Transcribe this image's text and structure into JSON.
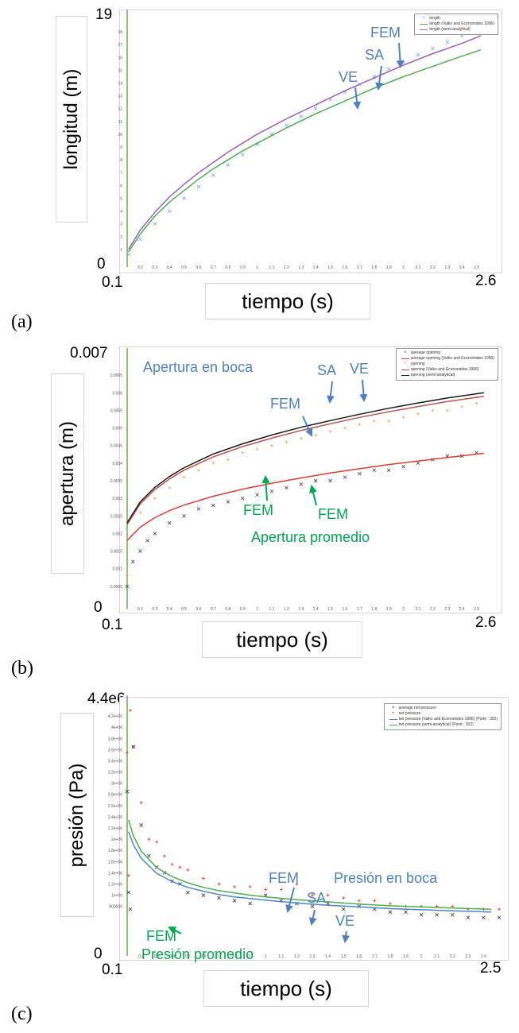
{
  "panels": [
    {
      "label": "(a)",
      "y_title": "longitud (m)",
      "x_title": "tiempo (s)",
      "y_min_label": "0",
      "y_max_label": "19",
      "x_min_label": "0.1",
      "x_max_label": "2.6",
      "legend": [
        "length",
        "length (Valko and Economides 1996)",
        "length (semi-analytical)"
      ],
      "annotations": [
        {
          "text": "FEM",
          "color": "#4f81bd"
        },
        {
          "text": "SA",
          "color": "#4f81bd"
        },
        {
          "text": "VE",
          "color": "#4f81bd"
        }
      ]
    },
    {
      "label": "(b)",
      "y_title": "apertura (m)",
      "x_title": "tiempo (s)",
      "y_min_label": "0",
      "y_max_label": "0.007",
      "x_min_label": "0.1",
      "x_max_label": "2.6",
      "legend": [
        "average opening",
        "average opening (Valko and Economides 1996)",
        "opening",
        "opening (Valko and Economides 1996)",
        "opening (semi-analytical)"
      ],
      "annotations": [
        {
          "text": "Apertura en boca",
          "color": "#4f81bd"
        },
        {
          "text": "SA",
          "color": "#4f81bd"
        },
        {
          "text": "VE",
          "color": "#4f81bd"
        },
        {
          "text": "FEM",
          "color": "#4f81bd"
        },
        {
          "text": "FEM",
          "color": "#00a651"
        },
        {
          "text": "FEM",
          "color": "#00a651"
        },
        {
          "text": "Apertura promedio",
          "color": "#00a651"
        }
      ]
    },
    {
      "label": "(c)",
      "y_title": "presión (Pa)",
      "x_title": "tiempo (s)",
      "y_min_label": "0",
      "y_max_label": "4.4e6",
      "x_min_label": "0.1",
      "x_max_label": "2.5",
      "legend": [
        "average net pressure",
        "net pressure",
        "net pressure (Valko and Economides 1996) (Point : 302)",
        "net pressure (semi-analytical) (Point : 302)"
      ],
      "annotations": [
        {
          "text": "FEM",
          "color": "#4f81bd"
        },
        {
          "text": "SA",
          "color": "#4f81bd"
        },
        {
          "text": "Presión en boca",
          "color": "#4f81bd"
        },
        {
          "text": "VE",
          "color": "#4f81bd"
        },
        {
          "text": "FEM",
          "color": "#00a651"
        },
        {
          "text": "Presión promedio",
          "color": "#00a651"
        }
      ]
    }
  ],
  "chart_data": [
    {
      "type": "line",
      "xlabel": "tiempo (s)",
      "ylabel": "longitud (m)",
      "xlim": [
        0.1,
        2.6
      ],
      "ylim": [
        0,
        19
      ],
      "x_ticks": [
        "0.2",
        "0.3",
        "0.4",
        "0.5",
        "0.6",
        "0.7",
        "0.8",
        "0.9",
        "1",
        "1.1",
        "1.2",
        "1.3",
        "1.4",
        "1.5",
        "1.6",
        "1.7",
        "1.8",
        "1.9",
        "2",
        "2.1",
        "2.2",
        "2.3",
        "2.4",
        "2.5"
      ],
      "y_ticks": [
        "1",
        "2",
        "3",
        "4",
        "5",
        "6",
        "7",
        "8",
        "9",
        "10",
        "11",
        "12",
        "13",
        "14",
        "15",
        "16",
        "17",
        "18"
      ],
      "legend_position": "top-right",
      "series": [
        {
          "name": "length",
          "kind": "markers",
          "marker": "x",
          "color": "#7fb2d9",
          "x": [
            0.12,
            0.2,
            0.3,
            0.4,
            0.5,
            0.6,
            0.7,
            0.8,
            0.9,
            1.0,
            1.1,
            1.2,
            1.3,
            1.4,
            1.5,
            1.6,
            1.7,
            1.8,
            1.9,
            2.0,
            2.1,
            2.2,
            2.3,
            2.4,
            2.5
          ],
          "values": [
            0.6,
            1.8,
            3.0,
            4.0,
            5.0,
            5.9,
            6.8,
            7.6,
            8.4,
            9.2,
            10.0,
            10.7,
            11.4,
            12.0,
            12.7,
            13.3,
            13.9,
            14.5,
            15.1,
            15.6,
            16.2,
            16.7,
            17.2,
            17.7,
            18.2
          ]
        },
        {
          "name": "length (Valko and Economides 1996)",
          "kind": "line",
          "color": "#4caf50",
          "x": [
            0.12,
            0.2,
            0.3,
            0.4,
            0.5,
            0.6,
            0.7,
            0.8,
            0.9,
            1.0,
            1.2,
            1.4,
            1.6,
            1.8,
            2.0,
            2.2,
            2.4,
            2.53
          ],
          "values": [
            0.8,
            2.2,
            3.6,
            4.7,
            5.6,
            6.5,
            7.3,
            8.0,
            8.7,
            9.3,
            10.5,
            11.6,
            12.6,
            13.6,
            14.5,
            15.3,
            16.1,
            16.6
          ]
        },
        {
          "name": "length (semi-analytical)",
          "kind": "line",
          "color": "#a05cbf",
          "x": [
            0.12,
            0.2,
            0.3,
            0.4,
            0.5,
            0.6,
            0.7,
            0.8,
            0.9,
            1.0,
            1.2,
            1.4,
            1.6,
            1.8,
            2.0,
            2.2,
            2.4,
            2.53
          ],
          "values": [
            1.0,
            2.5,
            3.9,
            5.1,
            6.1,
            7.0,
            7.8,
            8.6,
            9.3,
            10.0,
            11.2,
            12.3,
            13.4,
            14.4,
            15.4,
            16.3,
            17.1,
            17.7
          ]
        }
      ]
    },
    {
      "type": "line",
      "xlabel": "tiempo (s)",
      "ylabel": "apertura (m)",
      "xlim": [
        0.1,
        2.6
      ],
      "ylim": [
        0,
        0.007
      ],
      "x_ticks": [
        "0.2",
        "0.3",
        "0.4",
        "0.5",
        "0.6",
        "0.7",
        "0.8",
        "0.9",
        "1",
        "1.1",
        "1.2",
        "1.3",
        "1.4",
        "1.5",
        "1.6",
        "1.7",
        "1.8",
        "1.9",
        "2",
        "2.1",
        "2.2",
        "2.3",
        "2.4",
        "2.5"
      ],
      "y_ticks": [
        "0.0005",
        "0.001",
        "0.0015",
        "0.002",
        "0.0025",
        "0.003",
        "0.0035",
        "0.004",
        "0.0045",
        "0.005",
        "0.0055",
        "0.006",
        "0.0065"
      ],
      "legend_position": "top-right",
      "series": [
        {
          "name": "average opening",
          "kind": "markers",
          "marker": "x",
          "color": "#555555",
          "x": [
            0.11,
            0.15,
            0.2,
            0.25,
            0.3,
            0.4,
            0.5,
            0.6,
            0.7,
            0.8,
            0.9,
            1.0,
            1.1,
            1.2,
            1.3,
            1.4,
            1.5,
            1.6,
            1.7,
            1.8,
            1.9,
            2.0,
            2.1,
            2.2,
            2.3,
            2.4,
            2.5
          ],
          "values": [
            0.0005,
            0.0012,
            0.0015,
            0.0018,
            0.002,
            0.0023,
            0.0025,
            0.0027,
            0.0028,
            0.0029,
            0.003,
            0.0031,
            0.0032,
            0.0033,
            0.0034,
            0.0035,
            0.0035,
            0.0036,
            0.0037,
            0.0038,
            0.0038,
            0.0039,
            0.004,
            0.0041,
            0.0042,
            0.0042,
            0.0043
          ]
        },
        {
          "name": "average opening (Valko and Economides 1996)",
          "kind": "line",
          "color": "#e03c31",
          "x": [
            0.11,
            0.2,
            0.3,
            0.4,
            0.5,
            0.7,
            0.9,
            1.1,
            1.3,
            1.5,
            1.7,
            1.9,
            2.1,
            2.3,
            2.55
          ],
          "values": [
            0.0018,
            0.00218,
            0.00245,
            0.00265,
            0.00281,
            0.00306,
            0.00326,
            0.00343,
            0.00358,
            0.00372,
            0.00384,
            0.00396,
            0.00406,
            0.00416,
            0.00428
          ]
        },
        {
          "name": "opening",
          "kind": "markers",
          "marker": "+",
          "color": "#f4a460",
          "x": [
            0.11,
            0.2,
            0.3,
            0.4,
            0.5,
            0.6,
            0.7,
            0.8,
            0.9,
            1.0,
            1.1,
            1.2,
            1.3,
            1.4,
            1.5,
            1.6,
            1.7,
            1.8,
            1.9,
            2.0,
            2.1,
            2.2,
            2.3,
            2.4,
            2.5
          ],
          "values": [
            0.0008,
            0.0026,
            0.003,
            0.0033,
            0.0036,
            0.0038,
            0.004,
            0.0041,
            0.0043,
            0.0044,
            0.0045,
            0.0046,
            0.0047,
            0.0048,
            0.0049,
            0.005,
            0.0051,
            0.0052,
            0.0052,
            0.0053,
            0.0054,
            0.0055,
            0.0055,
            0.0056,
            0.0057
          ]
        },
        {
          "name": "opening (Valko and Economides 1996)",
          "kind": "line",
          "color": "#c0504d",
          "x": [
            0.11,
            0.2,
            0.3,
            0.4,
            0.5,
            0.7,
            0.9,
            1.1,
            1.3,
            1.5,
            1.7,
            1.9,
            2.1,
            2.3,
            2.55
          ],
          "values": [
            0.00225,
            0.00284,
            0.00325,
            0.00355,
            0.0038,
            0.00418,
            0.00447,
            0.00471,
            0.00493,
            0.00512,
            0.0053,
            0.00546,
            0.00561,
            0.00575,
            0.0059
          ]
        },
        {
          "name": "opening (semi-analytical)",
          "kind": "line",
          "color": "#1a1a1a",
          "x": [
            0.11,
            0.2,
            0.3,
            0.4,
            0.5,
            0.7,
            0.9,
            1.1,
            1.3,
            1.5,
            1.7,
            1.9,
            2.1,
            2.3,
            2.55
          ],
          "values": [
            0.0023,
            0.0029,
            0.00331,
            0.00362,
            0.00387,
            0.00426,
            0.00455,
            0.0048,
            0.00502,
            0.00521,
            0.00539,
            0.00556,
            0.00571,
            0.00585,
            0.006
          ]
        }
      ]
    },
    {
      "type": "line",
      "xlabel": "tiempo (s)",
      "ylabel": "presión (Pa)",
      "xlim": [
        0.1,
        2.5
      ],
      "ylim": [
        0,
        4400000
      ],
      "x_ticks": [
        "0.2",
        "0.3",
        "0.4",
        "0.5",
        "0.6",
        "0.7",
        "0.8",
        "0.9",
        "1",
        "1.1",
        "1.2",
        "1.3",
        "1.4",
        "1.5",
        "1.6",
        "1.7",
        "1.8",
        "1.9",
        "2",
        "2.1",
        "2.2",
        "2.3",
        "2.4"
      ],
      "y_ticks": [
        "800000",
        "1e+06",
        "1.2e+06",
        "1.4e+06",
        "1.6e+06",
        "1.8e+06",
        "2e+06",
        "2.2e+06",
        "2.4e+06",
        "2.6e+06",
        "2.8e+06",
        "3e+06",
        "3.2e+06",
        "3.4e+06",
        "3.6e+06",
        "3.8e+06",
        "4e+06",
        "4.2e+06"
      ],
      "legend_position": "top-right",
      "series": [
        {
          "name": "average net pressure",
          "kind": "markers",
          "marker": "x",
          "color": "#444444",
          "x": [
            0.11,
            0.12,
            0.13,
            0.15,
            0.2,
            0.25,
            0.3,
            0.35,
            0.4,
            0.45,
            0.5,
            0.6,
            0.7,
            0.8,
            0.9,
            1.0,
            1.1,
            1.2,
            1.3,
            1.4,
            1.5,
            1.6,
            1.7,
            1.8,
            1.9,
            2.0,
            2.1,
            2.2,
            2.3,
            2.4,
            2.5
          ],
          "values": [
            2850000,
            1050000,
            750000,
            3650000,
            2250000,
            1700000,
            1500000,
            1400000,
            1250000,
            1200000,
            1050000,
            1000000,
            950000,
            900000,
            850000,
            1000000,
            900000,
            850000,
            800000,
            850000,
            750000,
            800000,
            750000,
            700000,
            700000,
            650000,
            650000,
            650000,
            600000,
            600000,
            600000
          ]
        },
        {
          "name": "net pressure",
          "kind": "markers",
          "marker": "+",
          "color": "#e03c31",
          "x": [
            0.11,
            0.12,
            0.13,
            0.15,
            0.2,
            0.25,
            0.3,
            0.35,
            0.4,
            0.45,
            0.5,
            0.6,
            0.7,
            0.8,
            0.9,
            1.0,
            1.1,
            1.2,
            1.3,
            1.4,
            1.5,
            1.6,
            1.7,
            1.8,
            1.9,
            2.0,
            2.1,
            2.2,
            2.3,
            2.4,
            2.5
          ],
          "values": [
            3550000,
            1350000,
            4300000,
            3650000,
            2650000,
            2000000,
            1950000,
            1700000,
            1550000,
            1500000,
            1450000,
            1300000,
            1200000,
            1150000,
            1150000,
            1100000,
            1100000,
            1200000,
            1000000,
            1000000,
            950000,
            900000,
            900000,
            850000,
            800000,
            800000,
            800000,
            800000,
            750000,
            750000,
            750000
          ]
        },
        {
          "name": "net pressure (Valko and Economides 1996) (Point : 302)",
          "kind": "line",
          "color": "#4a86c8",
          "x": [
            0.12,
            0.15,
            0.2,
            0.3,
            0.4,
            0.5,
            0.6,
            0.7,
            0.8,
            0.9,
            1.0,
            1.2,
            1.4,
            1.6,
            1.8,
            2.0,
            2.2,
            2.45
          ],
          "values": [
            2130000,
            1900000,
            1660000,
            1390000,
            1240000,
            1140000,
            1070000,
            1010000,
            970000,
            940000,
            910000,
            860000,
            820000,
            790000,
            760000,
            740000,
            720000,
            700000
          ]
        },
        {
          "name": "net pressure (semi-analytical) (Point : 302)",
          "kind": "line",
          "color": "#4caf50",
          "x": [
            0.12,
            0.15,
            0.2,
            0.3,
            0.4,
            0.5,
            0.6,
            0.7,
            0.8,
            0.9,
            1.0,
            1.2,
            1.4,
            1.6,
            1.8,
            2.0,
            2.2,
            2.45
          ],
          "values": [
            2340000,
            2060000,
            1790000,
            1490000,
            1330000,
            1220000,
            1140000,
            1080000,
            1040000,
            1000000,
            970000,
            920000,
            880000,
            840000,
            810000,
            790000,
            770000,
            750000
          ]
        }
      ]
    }
  ]
}
